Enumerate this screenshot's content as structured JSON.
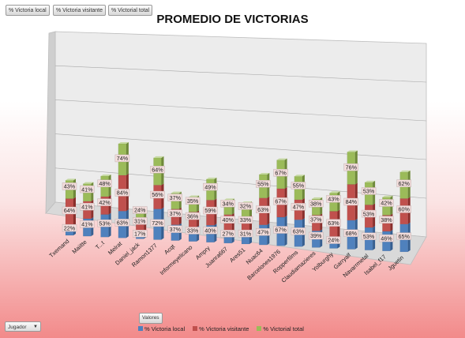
{
  "filters": {
    "local_label": "% Victoria local",
    "visit_label": "% Victoria visitante",
    "total_label": "% Victorial total"
  },
  "valores_label": "Valores",
  "jugador_label": "Jugador",
  "colors": {
    "local": "#4f81bd",
    "visit": "#c0504d",
    "total": "#9bbb59",
    "label_bg": "#f2dcdb"
  },
  "chart_data": {
    "type": "bar",
    "stacked": true,
    "title": "PROMEDIO DE VICTORIAS",
    "legend_position": "bottom",
    "categories": [
      "Txemand",
      "Maiitte",
      "T...t",
      "Melrat",
      "Daniel_jack",
      "Ramon1377",
      "Acqt",
      "Informeyelicano",
      "Ampry",
      "Juanra667",
      "Ares51",
      "Nuac64",
      "Barcelones1976",
      "Ropperfilms",
      "Claudiamazieres",
      "Yolburghy",
      "Garryalf",
      "Navarrmetal",
      "Isabel_f17",
      "Jguetin"
    ],
    "series": [
      {
        "name": "% Victoria local",
        "values": [
          22,
          41,
          53,
          63,
          17,
          72,
          37,
          33,
          40,
          27,
          31,
          47,
          67,
          63,
          39,
          24,
          68,
          53,
          46,
          65
        ]
      },
      {
        "name": "% Victoria visitante",
        "values": [
          64,
          41,
          42,
          84,
          31,
          56,
          37,
          36,
          59,
          40,
          33,
          63,
          67,
          47,
          37,
          63,
          84,
          53,
          38,
          60
        ]
      },
      {
        "name": "% Victorial total",
        "values": [
          43,
          41,
          48,
          74,
          24,
          64,
          37,
          35,
          49,
          34,
          32,
          55,
          67,
          55,
          38,
          43,
          76,
          53,
          42,
          62
        ]
      }
    ]
  }
}
